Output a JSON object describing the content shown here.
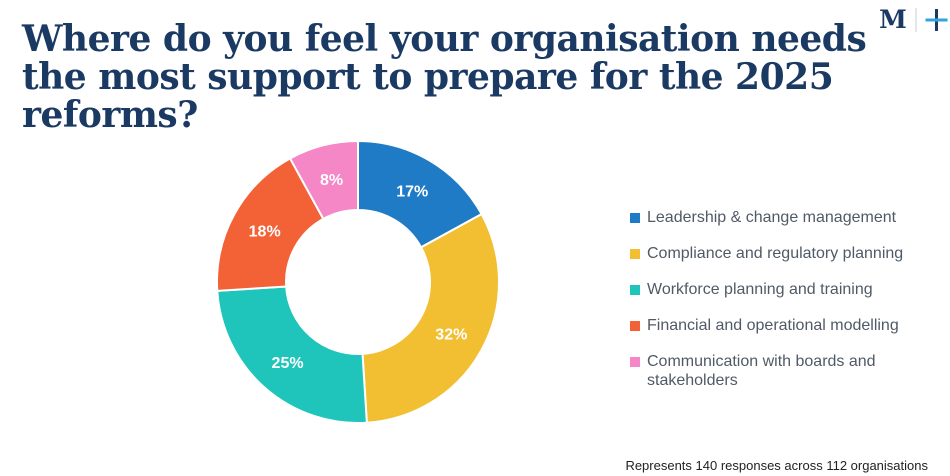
{
  "header": {
    "title": "Where do you feel your organisation needs the most support to prepare for the 2025 reforms?",
    "logo_text": "M",
    "logo_icon": "plus-icon"
  },
  "chart_data": {
    "type": "pie",
    "style": "donut",
    "title": "Where do you feel your organisation needs the most support to prepare for the 2025 reforms?",
    "categories": [
      "Leadership & change management",
      "Compliance and regulatory planning",
      "Workforce planning and training",
      "Financial and operational modelling",
      "Communication with boards and stakeholders"
    ],
    "values": [
      17,
      32,
      25,
      18,
      8
    ],
    "labels": [
      "17%",
      "32%",
      "25%",
      "18%",
      "8%"
    ],
    "colors": [
      "#1f7bc6",
      "#f2bf33",
      "#1fc4bb",
      "#f26236",
      "#f587c7"
    ],
    "legend_position": "right"
  },
  "footnote": "Represents 140 responses across 112 organisations"
}
